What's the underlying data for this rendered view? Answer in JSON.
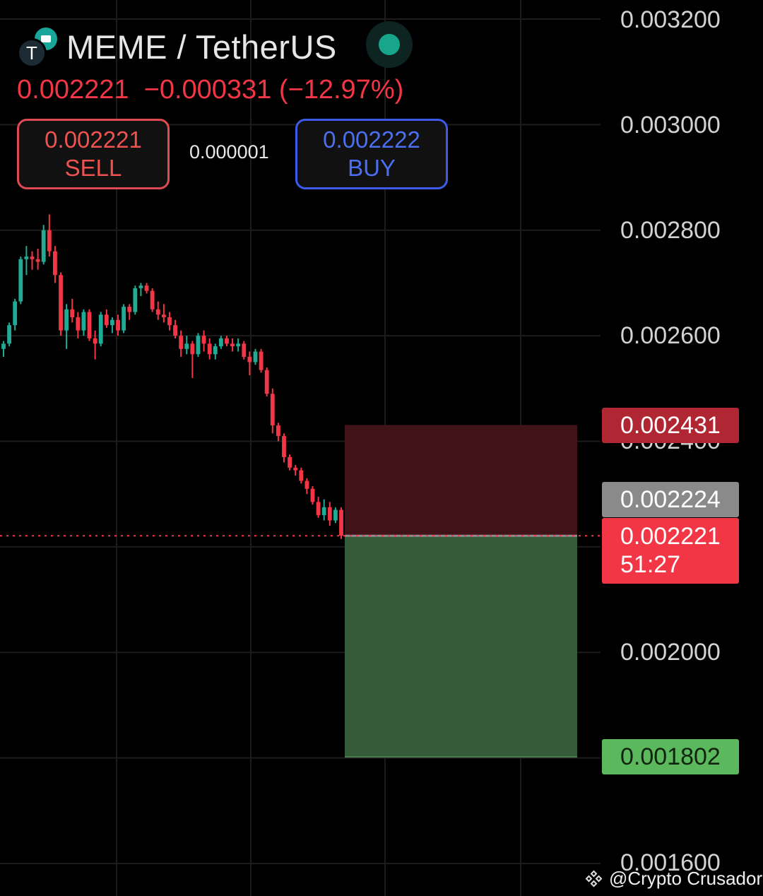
{
  "header": {
    "pair": "MEME / TetherUS",
    "base_logo_letter": "T",
    "last_price": "0.002221",
    "change": "−0.000331",
    "change_pct": "(−12.97%)",
    "sell": {
      "price": "0.002221",
      "label": "SELL"
    },
    "buy": {
      "price": "0.002222",
      "label": "BUY"
    },
    "spread": "0.000001",
    "market_status_color": "#17a58c"
  },
  "price_axis": {
    "labels": [
      "0.003200",
      "0.003000",
      "0.002800",
      "0.002600",
      "0.002400",
      "0.002000",
      "0.001600"
    ]
  },
  "price_tags": {
    "stop": "0.002431",
    "bid": "0.002224",
    "last": "0.002221",
    "countdown": "51:27",
    "target": "0.001802"
  },
  "watermark": {
    "text": "@Crypto Crusador"
  },
  "colors": {
    "up": "#22ab94",
    "down": "#f23645",
    "risk_zone": "#3f1318",
    "reward_zone": "#345b37"
  },
  "chart_data": {
    "type": "candlestick",
    "ylim": [
      0.0016,
      0.0032
    ],
    "y_ticks": [
      0.0032,
      0.003,
      0.0028,
      0.0026,
      0.0024,
      0.002,
      0.0016
    ],
    "last_price": 0.002221,
    "position": {
      "side": "short",
      "entry": 0.002221,
      "stop": 0.002431,
      "target": 0.001802
    },
    "candles": [
      [
        0.002575,
        0.00259,
        0.00256,
        0.002585
      ],
      [
        0.002585,
        0.002625,
        0.00258,
        0.00262
      ],
      [
        0.00262,
        0.00267,
        0.00261,
        0.002665
      ],
      [
        0.002665,
        0.00275,
        0.00266,
        0.002745
      ],
      [
        0.002745,
        0.00277,
        0.002715,
        0.00275
      ],
      [
        0.00275,
        0.00276,
        0.002725,
        0.002745
      ],
      [
        0.002745,
        0.002765,
        0.002725,
        0.00274
      ],
      [
        0.00274,
        0.00281,
        0.002735,
        0.0028
      ],
      [
        0.0028,
        0.00283,
        0.00275,
        0.00276
      ],
      [
        0.00276,
        0.00277,
        0.0027,
        0.002715
      ],
      [
        0.002715,
        0.00272,
        0.0026,
        0.00261
      ],
      [
        0.00261,
        0.00266,
        0.002575,
        0.00265
      ],
      [
        0.00265,
        0.00267,
        0.002625,
        0.002635
      ],
      [
        0.002635,
        0.002645,
        0.002595,
        0.00261
      ],
      [
        0.00261,
        0.00265,
        0.0026,
        0.002645
      ],
      [
        0.002645,
        0.00265,
        0.00259,
        0.002595
      ],
      [
        0.002595,
        0.00261,
        0.002555,
        0.002585
      ],
      [
        0.002585,
        0.002645,
        0.00258,
        0.00264
      ],
      [
        0.00264,
        0.00265,
        0.002615,
        0.00262
      ],
      [
        0.00262,
        0.002635,
        0.002605,
        0.00263
      ],
      [
        0.00263,
        0.00264,
        0.0026,
        0.00261
      ],
      [
        0.00261,
        0.00266,
        0.002605,
        0.002655
      ],
      [
        0.002655,
        0.00266,
        0.00263,
        0.002645
      ],
      [
        0.002645,
        0.002695,
        0.00264,
        0.00269
      ],
      [
        0.00269,
        0.0027,
        0.002675,
        0.002695
      ],
      [
        0.002695,
        0.0027,
        0.00268,
        0.002685
      ],
      [
        0.002685,
        0.00269,
        0.002645,
        0.00265
      ],
      [
        0.00265,
        0.002665,
        0.00263,
        0.00264
      ],
      [
        0.00264,
        0.00266,
        0.002625,
        0.002635
      ],
      [
        0.002635,
        0.002645,
        0.00261,
        0.00262
      ],
      [
        0.00262,
        0.00263,
        0.002595,
        0.0026
      ],
      [
        0.0026,
        0.00261,
        0.00256,
        0.002575
      ],
      [
        0.002575,
        0.0026,
        0.002565,
        0.002585
      ],
      [
        0.002585,
        0.00259,
        0.00252,
        0.002565
      ],
      [
        0.002565,
        0.002605,
        0.00256,
        0.0026
      ],
      [
        0.0026,
        0.00261,
        0.00257,
        0.002585
      ],
      [
        0.002585,
        0.002595,
        0.002555,
        0.002565
      ],
      [
        0.002565,
        0.002585,
        0.002555,
        0.00258
      ],
      [
        0.00258,
        0.0026,
        0.002575,
        0.002595
      ],
      [
        0.002595,
        0.0026,
        0.00258,
        0.002585
      ],
      [
        0.002585,
        0.002595,
        0.00257,
        0.00258
      ],
      [
        0.00258,
        0.002595,
        0.00257,
        0.002585
      ],
      [
        0.002585,
        0.00259,
        0.002555,
        0.00256
      ],
      [
        0.00256,
        0.00257,
        0.002525,
        0.00255
      ],
      [
        0.00255,
        0.002575,
        0.002545,
        0.00257
      ],
      [
        0.00257,
        0.002575,
        0.00253,
        0.002535
      ],
      [
        0.002535,
        0.00254,
        0.002485,
        0.00249
      ],
      [
        0.00249,
        0.0025,
        0.002415,
        0.00243
      ],
      [
        0.00243,
        0.002435,
        0.0024,
        0.00241
      ],
      [
        0.00241,
        0.002415,
        0.00236,
        0.00237
      ],
      [
        0.00237,
        0.002375,
        0.002345,
        0.00235
      ],
      [
        0.00235,
        0.002355,
        0.002335,
        0.002345
      ],
      [
        0.002345,
        0.00235,
        0.00232,
        0.002325
      ],
      [
        0.002325,
        0.00233,
        0.0023,
        0.00231
      ],
      [
        0.00231,
        0.002315,
        0.00228,
        0.002285
      ],
      [
        0.002285,
        0.002295,
        0.002255,
        0.00226
      ],
      [
        0.00226,
        0.00229,
        0.00225,
        0.002275
      ],
      [
        0.002275,
        0.002285,
        0.00224,
        0.00225
      ],
      [
        0.00225,
        0.002275,
        0.002245,
        0.00227
      ],
      [
        0.00227,
        0.002275,
        0.002215,
        0.002221
      ]
    ]
  }
}
